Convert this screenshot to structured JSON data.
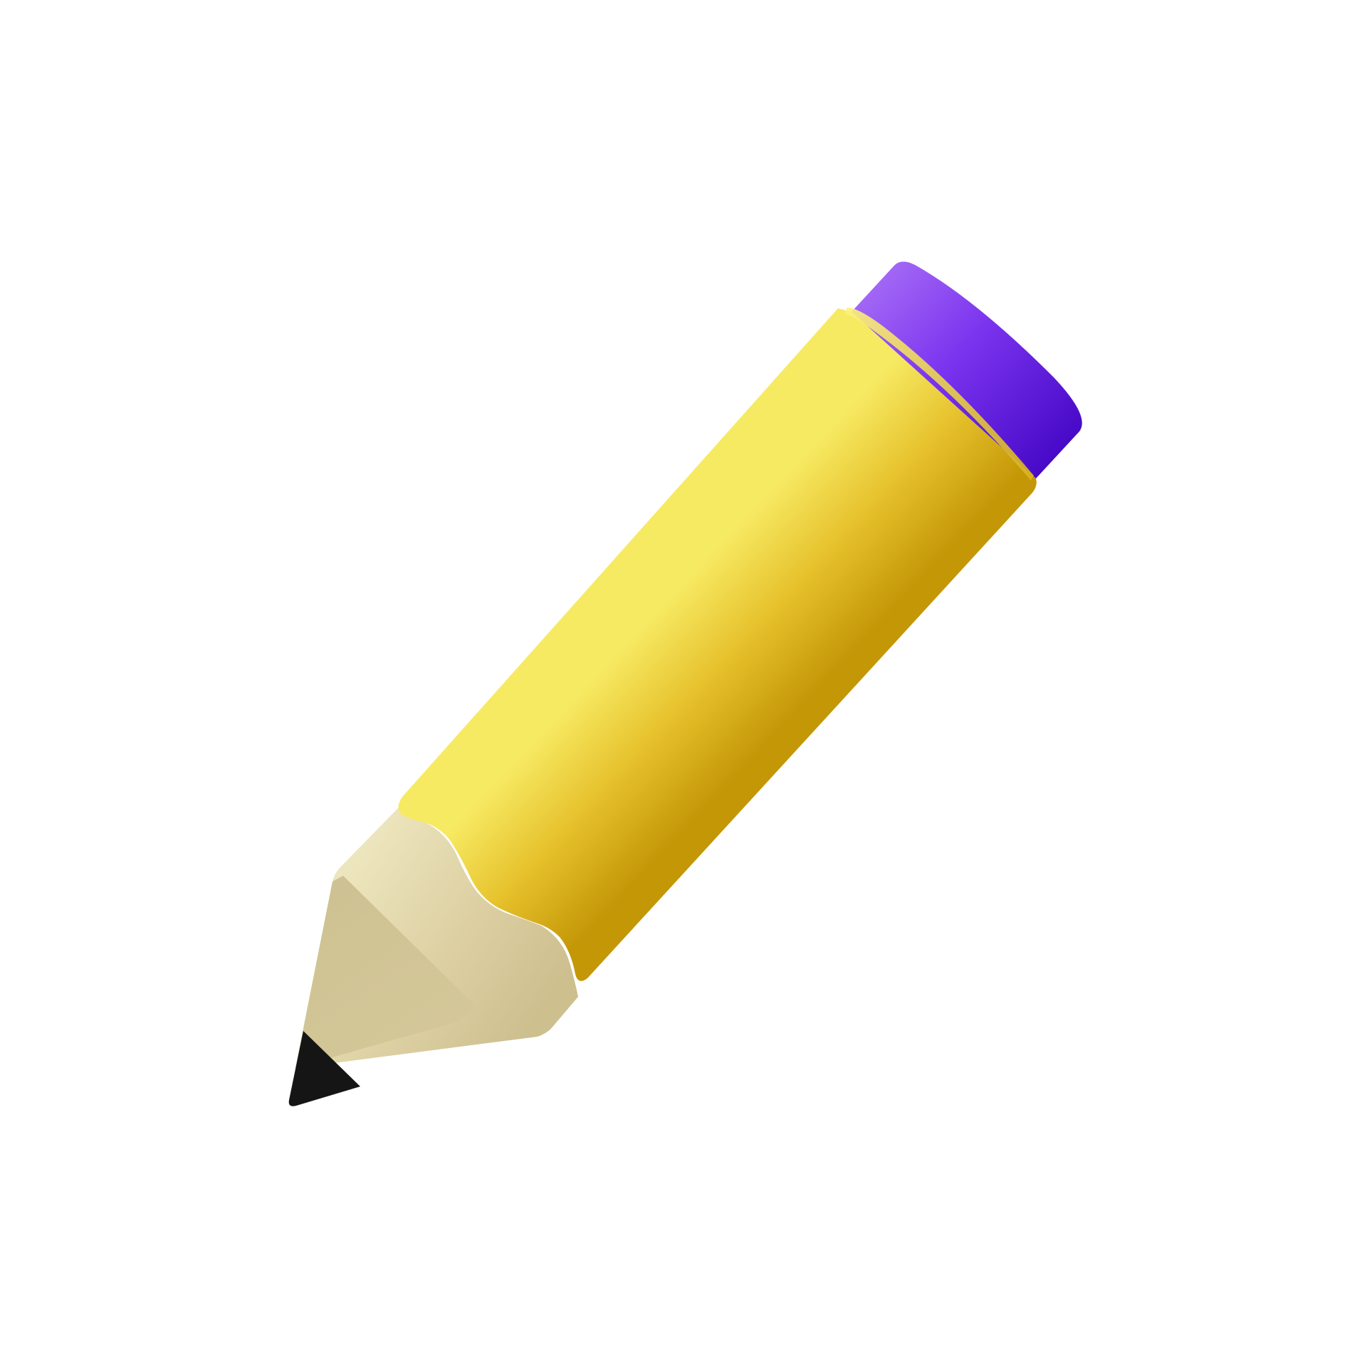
{
  "icon": {
    "name": "pencil-icon",
    "colors": {
      "background": "#ffffff",
      "eraser_light": "#a66cf6",
      "eraser_mid": "#7a33ee",
      "eraser_dark": "#4508c6",
      "body_light": "#f7ea63",
      "body_mid": "#e6c12c",
      "body_dark": "#c49707",
      "wood_light": "#ede5bd",
      "wood_mid": "#dccfa2",
      "wood_dark": "#c8bb8a",
      "lead": "#151515"
    }
  }
}
